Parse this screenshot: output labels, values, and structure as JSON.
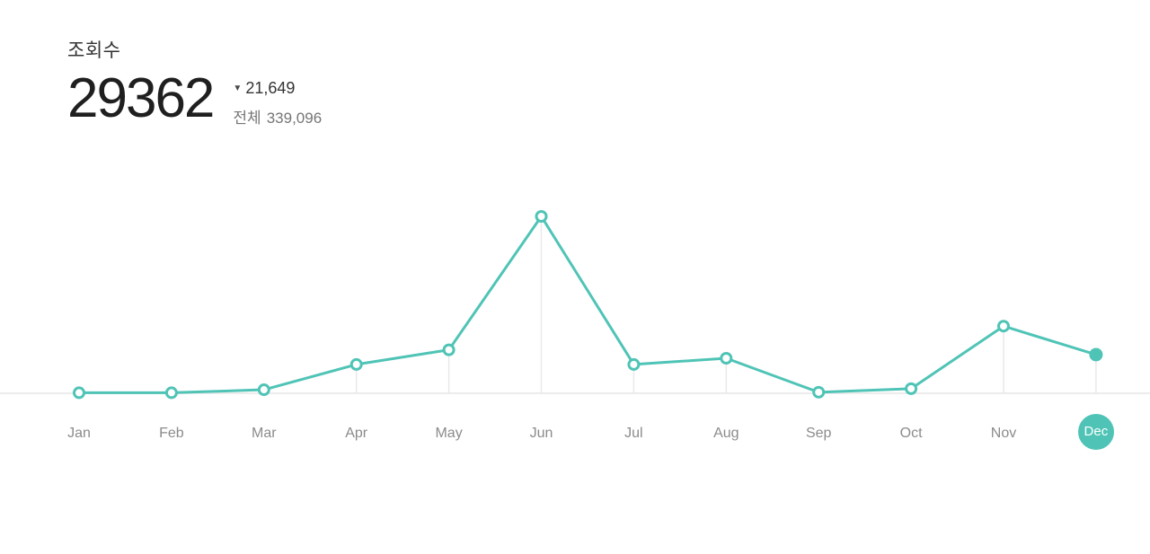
{
  "header": {
    "metric_label": "조회수",
    "current_value": "29362",
    "delta_value": "21,649",
    "delta_direction": "down",
    "total_label": "전체",
    "total_value": "339,096"
  },
  "icons": {
    "decrease_triangle": "▼"
  },
  "colors": {
    "accent_teal": "#4FC4B6",
    "baseline_gray": "#ECECEC",
    "dropline_gray": "#E9E9E9",
    "month_label_gray": "#8B8B8B",
    "value_text_dark": "#1F1F1F",
    "marker_fill": "#FFFFFF"
  },
  "chart_data": {
    "type": "line",
    "title": "조회수 (monthly views)",
    "categories": [
      "Jan",
      "Feb",
      "Mar",
      "Apr",
      "May",
      "Jun",
      "Jul",
      "Aug",
      "Sep",
      "Oct",
      "Nov",
      "Dec"
    ],
    "values": [
      400,
      400,
      2700,
      21900,
      33000,
      134400,
      21900,
      26600,
      800,
      3500,
      51011,
      29362
    ],
    "xlabel": "",
    "ylabel": "",
    "ylim": [
      0,
      140000
    ],
    "grid": "vertical drop-lines from points to baseline only",
    "legend": "none",
    "highlighted_category": "Dec",
    "highlight_index": 11,
    "marker_style": "open circle, filled for highlighted month"
  }
}
